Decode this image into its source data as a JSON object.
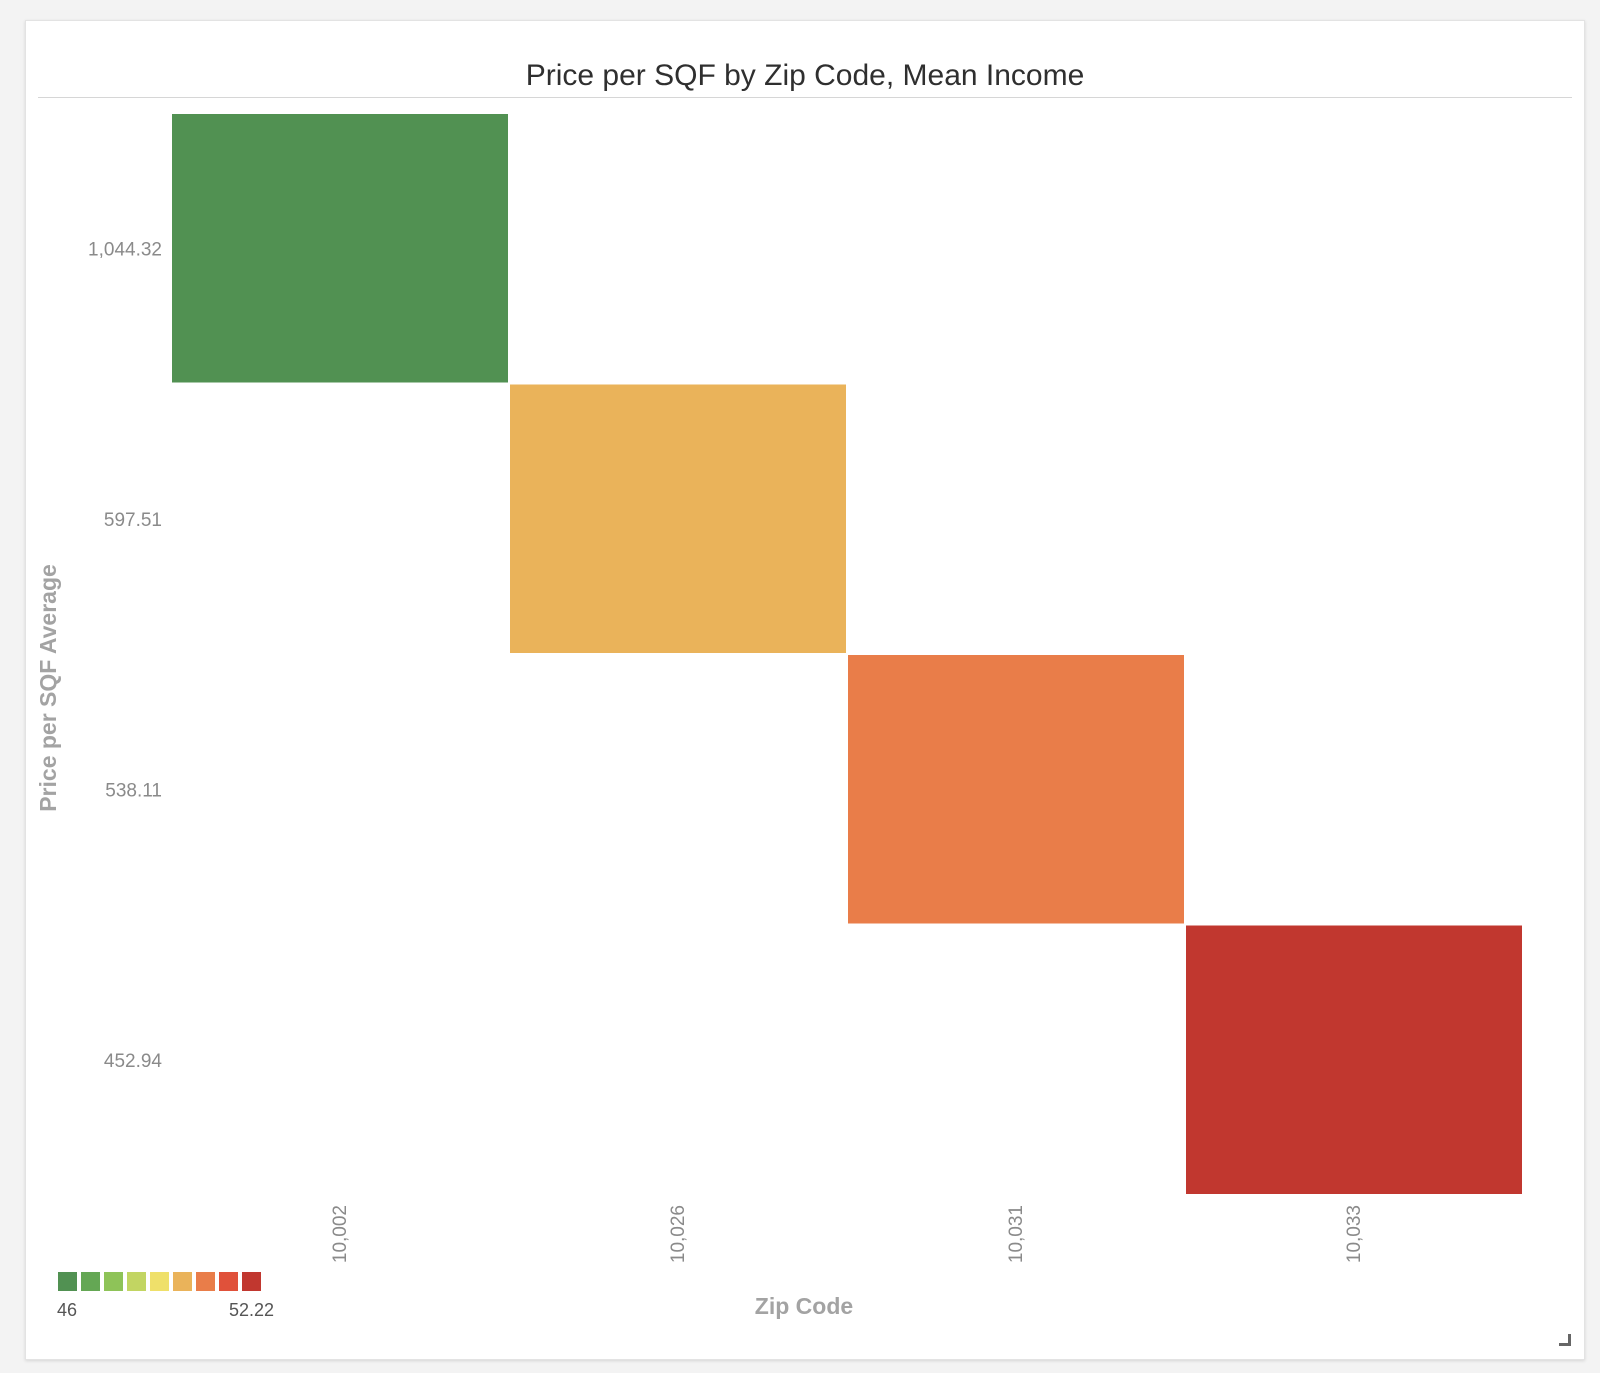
{
  "chart_data": {
    "type": "heatmap",
    "title": "Price per SQF by Zip Code, Mean Income",
    "xlabel": "Zip Code",
    "ylabel": "Price per SQF Average",
    "x_categories": [
      "10,002",
      "10,026",
      "10,031",
      "10,033"
    ],
    "y_categories": [
      "1,044.32",
      "597.51",
      "538.11",
      "452.94"
    ],
    "cells": [
      {
        "x": "10,002",
        "y": "1,044.32",
        "color": "#519152"
      },
      {
        "x": "10,026",
        "y": "597.51",
        "color": "#eab35a"
      },
      {
        "x": "10,031",
        "y": "538.11",
        "color": "#e97d49"
      },
      {
        "x": "10,033",
        "y": "452.94",
        "color": "#c1372f"
      }
    ],
    "legend": {
      "position": "bottom-left",
      "min_label": "46",
      "max_label": "52.22",
      "colors": [
        "#519152",
        "#64a754",
        "#8ec358",
        "#c2d562",
        "#efe06a",
        "#eab35a",
        "#e97d49",
        "#e0513a",
        "#c1372f"
      ]
    }
  }
}
